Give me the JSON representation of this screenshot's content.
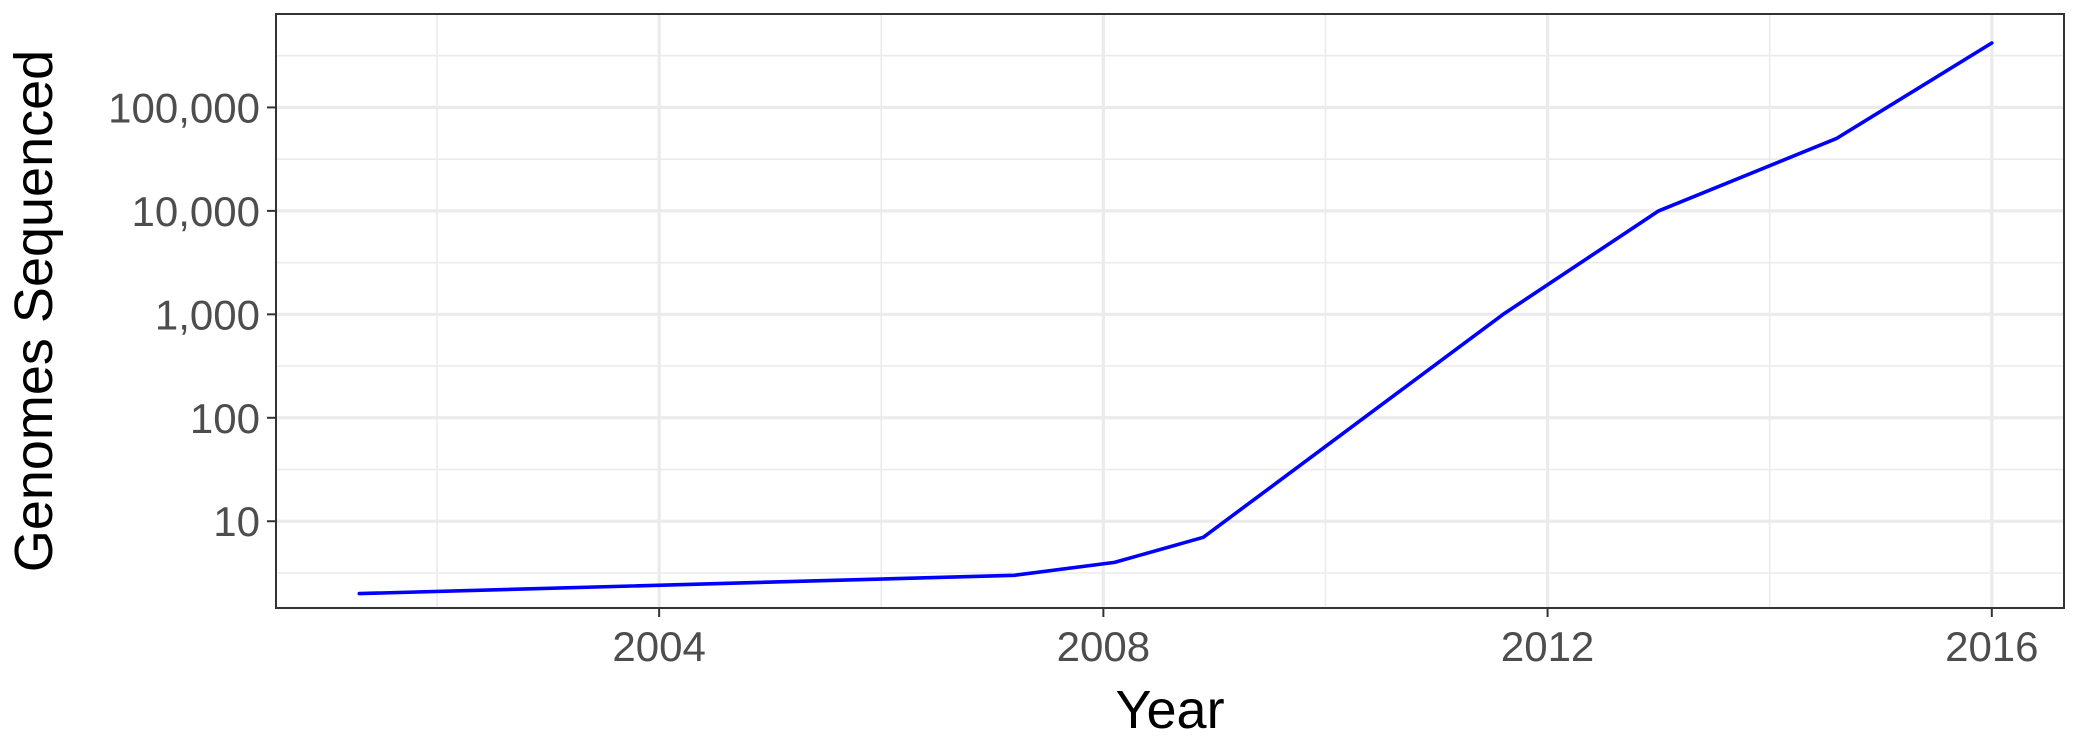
{
  "chart_data": {
    "type": "line",
    "title": "",
    "xlabel": "Year",
    "ylabel": "Genomes Sequenced",
    "y_scale": "log10",
    "grid": true,
    "legend": "none",
    "xlim": [
      2000.55,
      2016.65
    ],
    "ylim": [
      1.45,
      800000
    ],
    "x_ticks": [
      2004,
      2008,
      2012,
      2016
    ],
    "x_tick_labels": [
      "2004",
      "2008",
      "2012",
      "2016"
    ],
    "x_minor_ticks": [
      2002,
      2006,
      2010,
      2014
    ],
    "y_ticks": [
      10,
      100,
      1000,
      10000,
      100000
    ],
    "y_tick_labels": [
      "10",
      "100",
      "1,000",
      "10,000",
      "100,000"
    ],
    "y_minor_ticks": [
      3.16,
      31.6,
      316,
      3160,
      31600,
      316000
    ],
    "series": [
      {
        "color": "#0000ff",
        "x": [
          2001.3,
          2007.2,
          2008.1,
          2008.9,
          2011.6,
          2013.0,
          2014.6,
          2016.0
        ],
        "y": [
          2,
          3,
          4,
          7,
          1000,
          10000,
          50000,
          420000
        ]
      }
    ]
  }
}
